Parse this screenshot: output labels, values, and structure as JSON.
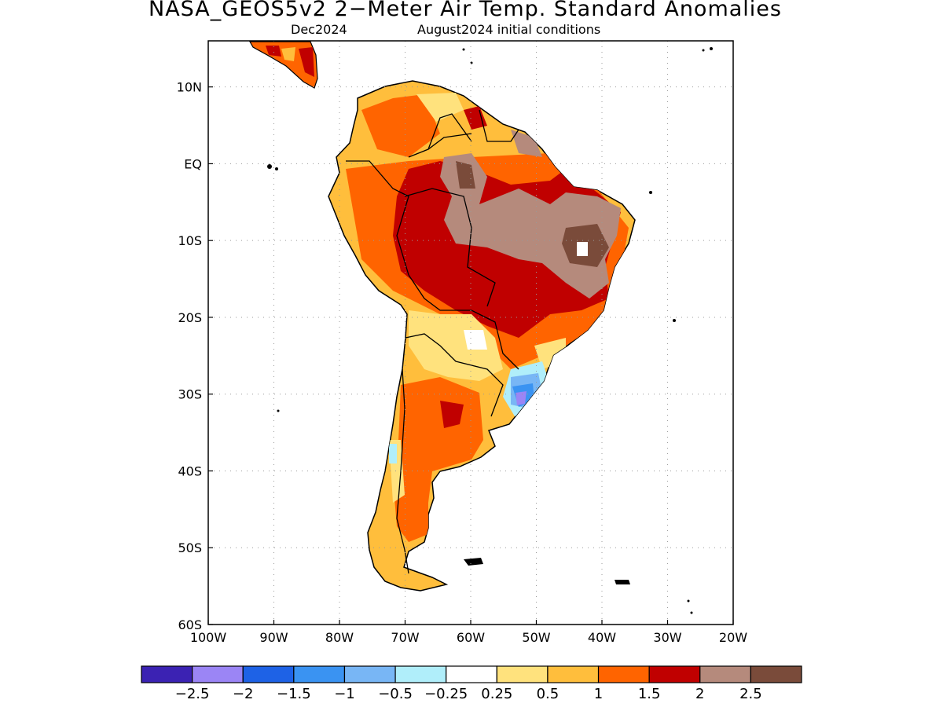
{
  "title": "NASA_GEOS5v2 2−Meter Air Temp. Standard Anomalies",
  "subtitle_left": "Dec2024",
  "subtitle_right": "August2024 initial conditions",
  "map": {
    "lon_range": [
      -100,
      -20
    ],
    "lat_range": [
      -60,
      16
    ],
    "lon_ticks": [
      {
        "value": -100,
        "label": "100W"
      },
      {
        "value": -90,
        "label": "90W"
      },
      {
        "value": -80,
        "label": "80W"
      },
      {
        "value": -70,
        "label": "70W"
      },
      {
        "value": -60,
        "label": "60W"
      },
      {
        "value": -50,
        "label": "50W"
      },
      {
        "value": -40,
        "label": "40W"
      },
      {
        "value": -30,
        "label": "30W"
      },
      {
        "value": -20,
        "label": "20W"
      }
    ],
    "lat_ticks": [
      {
        "value": 10,
        "label": "10N"
      },
      {
        "value": 0,
        "label": "EQ"
      },
      {
        "value": -10,
        "label": "10S"
      },
      {
        "value": -20,
        "label": "20S"
      },
      {
        "value": -30,
        "label": "30S"
      },
      {
        "value": -40,
        "label": "40S"
      },
      {
        "value": -50,
        "label": "50S"
      },
      {
        "value": -60,
        "label": "60S"
      }
    ],
    "grid": "dotted"
  },
  "colorbar": {
    "colors": [
      "#3b22b3",
      "#9b85f5",
      "#1e62e6",
      "#3a93f2",
      "#78b6f5",
      "#b0eefa",
      "#ffffff",
      "#ffe27d",
      "#ffbe3c",
      "#ff6400",
      "#c00000",
      "#b58a7c",
      "#7a4b3a"
    ],
    "labels": [
      "−2.5",
      "−2",
      "−1.5",
      "−1",
      "−0.5",
      "−0.25",
      "0.25",
      "0.5",
      "1",
      "1.5",
      "2",
      "2.5"
    ]
  }
}
